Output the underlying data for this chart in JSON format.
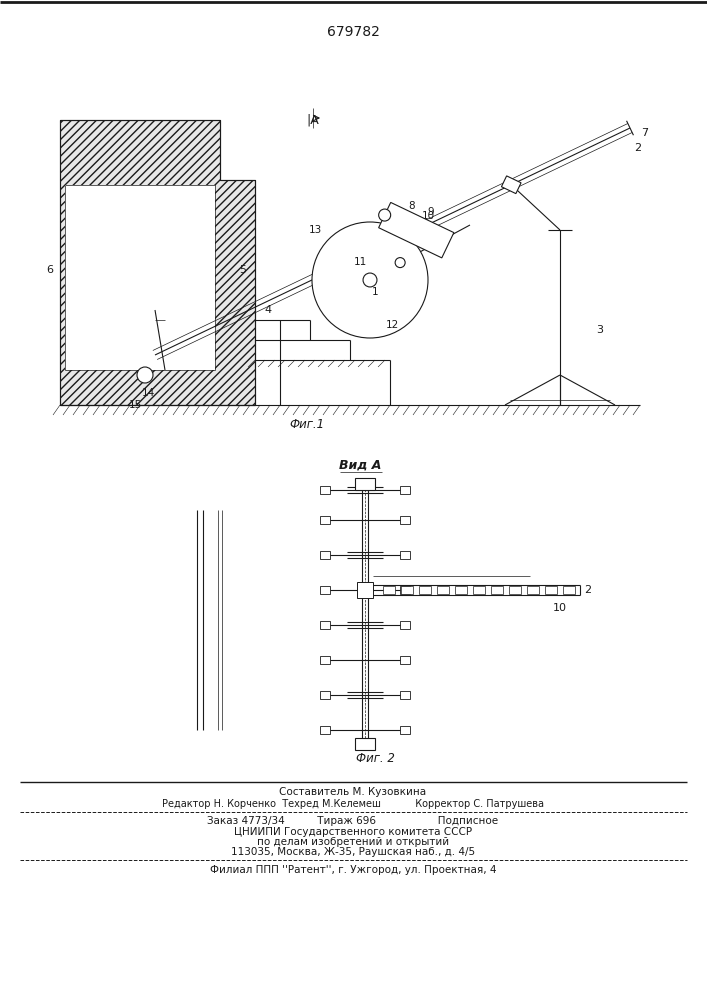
{
  "patent_number": "679782",
  "fig1_label": "Фиг.1",
  "fig2_label": "Фиг. 2",
  "vid_label": "Вид А",
  "footer_line1": "Составитель М. Кузовкина",
  "footer_line2": "Редактор Н. Корченко  Техред М.Келемеш           Корректор С. Патрушева",
  "footer_line3": "Заказ 4773/34          Тираж 696                   Подписное",
  "footer_line4": "ЦНИИПИ Государственного комитета СССР",
  "footer_line5": "по делам изобретений и открытий",
  "footer_line6": "113035, Москва, Ж-35, Раушская наб., д. 4/5",
  "footer_line7": "Филиал ППП ''Pатент'', г. Ужгород, ул. Проектная, 4",
  "bg_color": "#ffffff",
  "line_color": "#1a1a1a"
}
